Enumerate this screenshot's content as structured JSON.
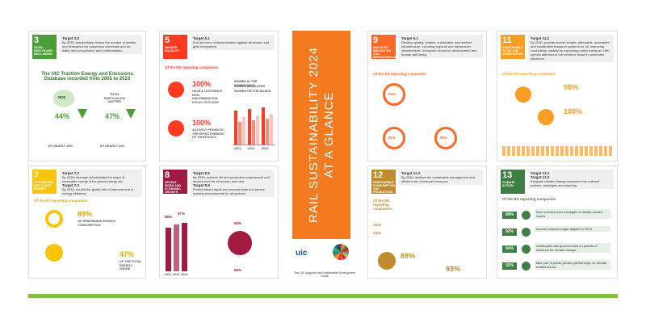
{
  "title": {
    "line1": "RAIL SUSTAINABILITY 2024",
    "line2": "AT A GLANCE"
  },
  "footer": {
    "org": "uic",
    "note": "The UIC supports the Sustainable Development Goals"
  },
  "reporting": "Of the RS reporting companies",
  "cards": {
    "sdg3": {
      "number": "3",
      "name": "GOOD HEALTH AND WELL-BEING",
      "target": "Target 3.9",
      "text": "By 2030, substantially reduce the number of deaths and illnesses from hazardous chemicals and air, water and soil pollution and contamination.",
      "heading": "The UIC Traction Energy and Emissions Database recorded from 2005 to 2023",
      "no2": "NO2",
      "pm": "TOTAL PARTICULATE MATTER",
      "no2_value": "44%",
      "pm_value": "47%",
      "no2_note": "BY NEARLY 15%",
      "pm_note": "BY NEARLY 20%"
    },
    "sdg5": {
      "number": "5",
      "name": "GENDER EQUALITY",
      "target": "Target 5.1",
      "text": "End all forms of discrimination against all women and girls everywhere",
      "stat1": "100%",
      "stat1_text": "HAVE A LEGITIMATE NON-DISCRIMINATION POLICY IN PLACE",
      "stat2": "100%",
      "stat2_text": "ACTIVELY PROMOTE THE EFFECTIVENESS OF THIS POLICY",
      "legend": [
        "WOMEN IN THE WORKFORCE",
        "WOMEN MANAGERS",
        "WOMEN ON THE BOARD"
      ],
      "years": [
        "2021",
        "2022",
        "2023"
      ]
    },
    "sdg9": {
      "number": "9",
      "name": "INDUSTRY, INNOVATION AND INFRASTRUCTURE",
      "target": "Target 9.1",
      "text": "Develop quality, reliable, sustainable and resilient infrastructure, including regional and transborder infrastructure, to support economic development and human well-being.",
      "stat1": "94%",
      "stat2": "91%",
      "stat3": "95%"
    },
    "sdg11": {
      "number": "11",
      "name": "SUSTAINABLE CITIES AND COMMUNITIES",
      "target": "Target 11.2",
      "text": "By 2030, provide access to safe, affordable, accessible and sustainable transport systems for all, improving road safety, notably by expanding public transport, with special attention to the needs of those in vulnerable situations.",
      "stat1": "96%",
      "stat2": "100%"
    },
    "sdg7": {
      "number": "7",
      "name": "AFFORDABLE AND CLEAN ENERGY",
      "target": "Target 7.2",
      "target2": "Target 7.3",
      "text": "By 2030, increase substantially the share of renewable energy in the global energy mix",
      "text2": "By 2030, double the global rate of improvement in energy efficiency",
      "stat1": "89%",
      "stat1_text": "OF RENEWABLE ENERGY CONSUMPTION",
      "stat2": "47%",
      "stat2_text": "OF THE TOTAL ENERGY SHARE"
    },
    "sdg8": {
      "number": "8",
      "name": "DECENT WORK AND ECONOMIC GROWTH",
      "target": "Target 8.5",
      "target2": "Target 8.8",
      "text": "By 2030, achieve full and productive employment and decent work for all women and men.",
      "text2": "Protect labour rights and promote safe and secure working environments for all workers.",
      "stat1": "88%",
      "stat2": "97%",
      "stat3": "94%",
      "stat4": "86%",
      "years": [
        "2021",
        "2022",
        "2023"
      ]
    },
    "sdg12": {
      "number": "12",
      "name": "RESPONSIBLE CONSUMPTION AND PRODUCTION",
      "target": "Target 12.2",
      "text": "By 2030, achieve the sustainable management and efficient use of natural resources",
      "year1": "2023",
      "year2": "2022",
      "stat1": "69%",
      "stat2": "93%"
    },
    "sdg13": {
      "number": "13",
      "name": "CLIMATE ACTION",
      "target": "Target 13.2",
      "target2": "Target 13.3",
      "text": "Integrate climate change measures into national policies, strategies and planning",
      "stats": [
        {
          "value": "89%",
          "text": "have a board-level oversight of climate-related issues"
        },
        {
          "value": "92%",
          "text": "had an emission target aligned in 2023"
        },
        {
          "value": "94%",
          "text": "collaborate with governments on policies & solutions for climate change"
        },
        {
          "value": "92%",
          "text": "take part in public-private partnerships on climate related issues"
        }
      ]
    }
  }
}
